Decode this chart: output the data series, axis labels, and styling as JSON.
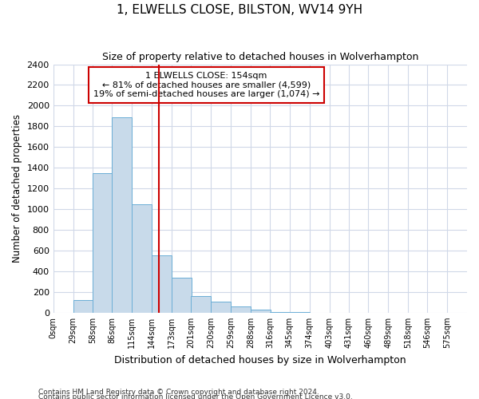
{
  "title": "1, ELWELLS CLOSE, BILSTON, WV14 9YH",
  "subtitle": "Size of property relative to detached houses in Wolverhampton",
  "xlabel": "Distribution of detached houses by size in Wolverhampton",
  "ylabel": "Number of detached properties",
  "bar_color": "#c8daea",
  "bar_edge_color": "#6baed6",
  "categories": [
    "0sqm",
    "29sqm",
    "58sqm",
    "86sqm",
    "115sqm",
    "144sqm",
    "173sqm",
    "201sqm",
    "230sqm",
    "259sqm",
    "288sqm",
    "316sqm",
    "345sqm",
    "374sqm",
    "403sqm",
    "431sqm",
    "460sqm",
    "489sqm",
    "518sqm",
    "546sqm",
    "575sqm"
  ],
  "values": [
    0,
    125,
    1350,
    1890,
    1050,
    550,
    340,
    160,
    105,
    60,
    30,
    5,
    5,
    0,
    0,
    0,
    0,
    0,
    0,
    0,
    0
  ],
  "red_line_x": 154,
  "bin_starts": [
    0,
    29,
    58,
    86,
    115,
    144,
    173,
    201,
    230,
    259,
    288,
    316,
    345,
    374,
    403,
    431,
    460,
    489,
    518,
    546,
    575
  ],
  "bin_width": 29,
  "annotation_text": "1 ELWELLS CLOSE: 154sqm\n← 81% of detached houses are smaller (4,599)\n19% of semi-detached houses are larger (1,074) →",
  "annotation_box_color": "#ffffff",
  "annotation_box_edge_color": "#cc0000",
  "ylim": [
    0,
    2400
  ],
  "yticks": [
    0,
    200,
    400,
    600,
    800,
    1000,
    1200,
    1400,
    1600,
    1800,
    2000,
    2200,
    2400
  ],
  "footnote1": "Contains HM Land Registry data © Crown copyright and database right 2024.",
  "footnote2": "Contains public sector information licensed under the Open Government Licence v3.0.",
  "background_color": "#ffffff",
  "plot_bg_color": "#ffffff",
  "grid_color": "#d0d8e8"
}
